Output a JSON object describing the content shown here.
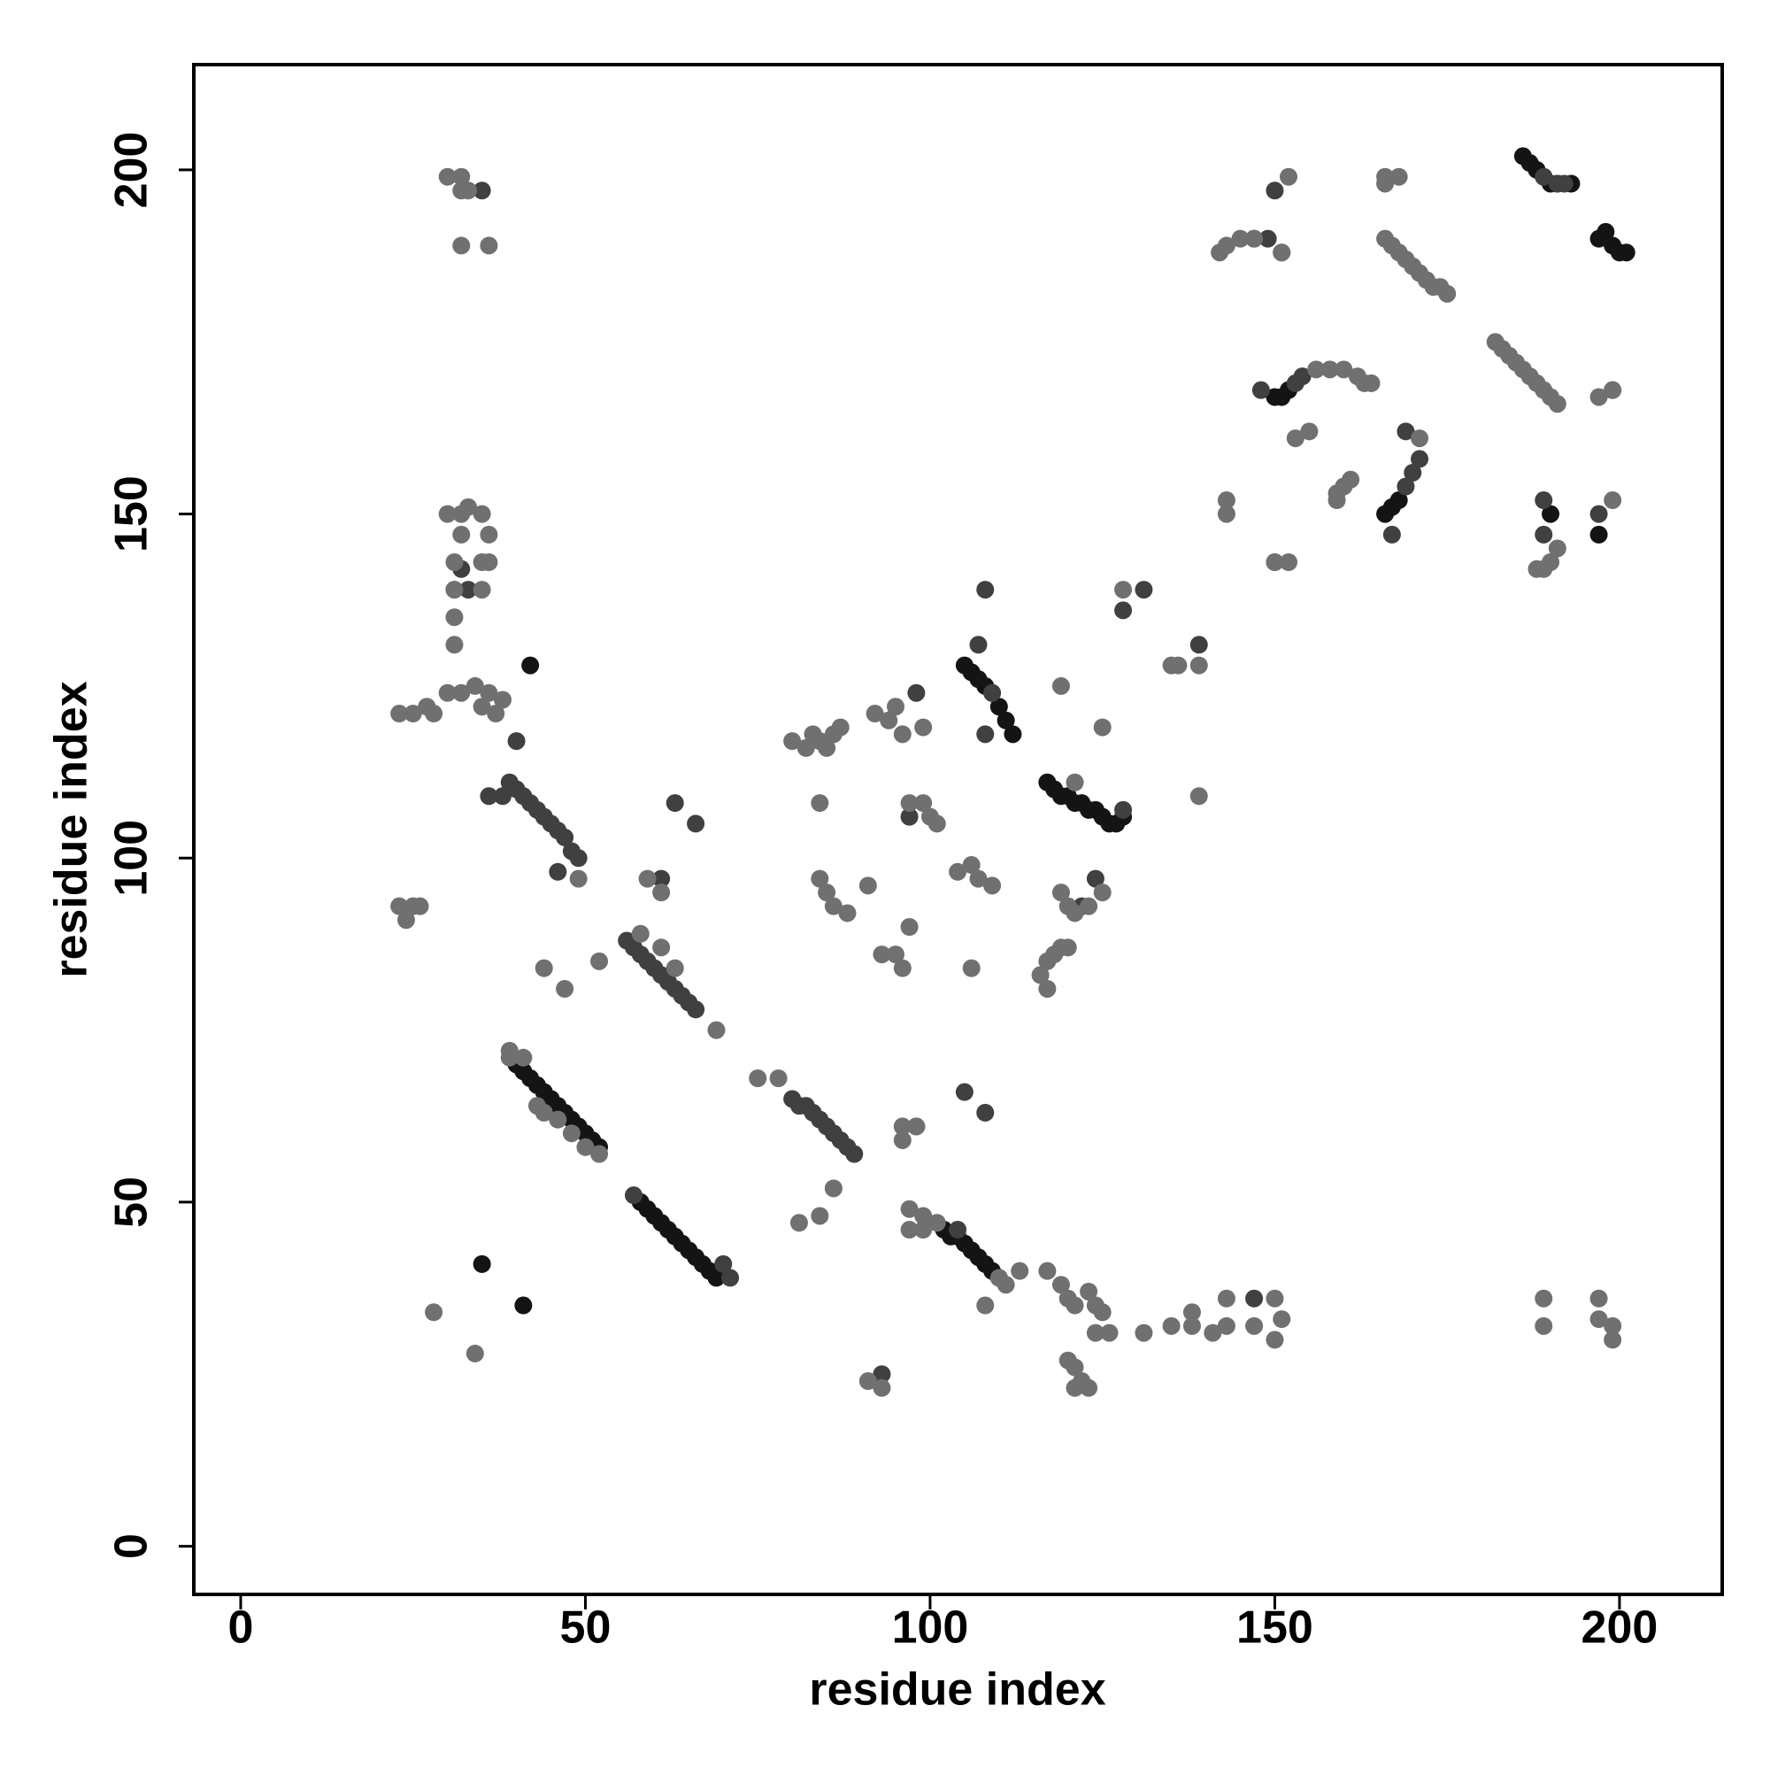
{
  "chart_data": {
    "type": "scatter",
    "xlabel": "residue index",
    "ylabel": "residue index",
    "xlim": [
      -6.8,
      214.9
    ],
    "ylim": [
      -7,
      215.3
    ],
    "xticks": [
      0,
      50,
      100,
      150,
      200
    ],
    "yticks": [
      0,
      50,
      100,
      150,
      200
    ],
    "series": [
      {
        "color": "#141414",
        "x": [
          40,
          41,
          42,
          43,
          44,
          45,
          46,
          47,
          48,
          49,
          50,
          51,
          52,
          58,
          59,
          60,
          61,
          62,
          63,
          64,
          65,
          66,
          67,
          68,
          69,
          102,
          103,
          104,
          105,
          106,
          107,
          108,
          109,
          110,
          105,
          106,
          107,
          108,
          109,
          110,
          111,
          112,
          117,
          118,
          119,
          120,
          121,
          122,
          123,
          124,
          125,
          126,
          127,
          128,
          186,
          187,
          188,
          189,
          190,
          191,
          193,
          197,
          198,
          199,
          200,
          201,
          35,
          41,
          42,
          167,
          168,
          166,
          150,
          151,
          152,
          190,
          197
        ],
        "values": [
          70,
          69,
          68,
          67,
          66,
          65,
          64,
          63,
          62,
          61,
          60,
          59,
          58,
          50,
          49,
          48,
          47,
          46,
          45,
          44,
          43,
          42,
          41,
          40,
          39,
          46,
          45,
          45,
          44,
          43,
          42,
          41,
          40,
          39,
          128,
          127,
          126,
          125,
          124,
          122,
          120,
          118,
          111,
          110,
          109,
          109,
          108,
          108,
          107,
          107,
          106,
          105,
          105,
          106,
          202,
          201,
          200,
          199,
          198,
          198,
          198,
          190,
          191,
          189,
          188,
          188,
          41,
          35,
          128,
          151,
          152,
          150,
          167,
          167,
          168,
          150,
          147
        ]
      },
      {
        "color": "#404040",
        "x": [
          56,
          57,
          58,
          59,
          60,
          61,
          62,
          63,
          64,
          65,
          66,
          36,
          38,
          39,
          40,
          41,
          42,
          43,
          44,
          45,
          46,
          47,
          48,
          49,
          46,
          40,
          80,
          81,
          82,
          83,
          84,
          85,
          86,
          87,
          88,
          89,
          57,
          70,
          71,
          104,
          107,
          108,
          109,
          169,
          170,
          171,
          169,
          167,
          148,
          153,
          154,
          147,
          149,
          150,
          151,
          189,
          191,
          192,
          199,
          197,
          189,
          189,
          98,
          97,
          61,
          63,
          66,
          105,
          108,
          98,
          124,
          122,
          128,
          131,
          139,
          128,
          108,
          147,
          93,
          35,
          31,
          32,
          33
        ],
        "values": [
          88,
          87,
          86,
          85,
          84,
          83,
          82,
          81,
          80,
          79,
          78,
          109,
          109,
          111,
          110,
          109,
          108,
          107,
          106,
          105,
          104,
          103,
          101,
          100,
          98,
          117,
          65,
          64,
          64,
          63,
          62,
          61,
          60,
          59,
          58,
          57,
          51,
          41,
          39,
          46,
          131,
          139,
          124,
          154,
          156,
          158,
          162,
          147,
          168,
          169,
          170,
          190,
          190,
          197,
          188,
          199,
          198,
          198,
          168,
          150,
          152,
          147,
          61,
          106,
          97,
          108,
          105,
          66,
          63,
          124,
          97,
          93,
          136,
          139,
          131,
          107,
          118,
          36,
          25,
          197,
          139,
          142,
          139
        ]
      },
      {
        "color": "#707070",
        "x": [
          39,
          41,
          43,
          44,
          46,
          48,
          50,
          52,
          58,
          61,
          63,
          69,
          39,
          49,
          75,
          78,
          86,
          84,
          81,
          97,
          99,
          101,
          97,
          99,
          108,
          113,
          111,
          110,
          121,
          166,
          167,
          168,
          169,
          170,
          171,
          172,
          173,
          174,
          175,
          182,
          183,
          184,
          185,
          186,
          187,
          188,
          189,
          190,
          191,
          199,
          197,
          150,
          156,
          158,
          160,
          162,
          163,
          164,
          166,
          171,
          142,
          143,
          145,
          147,
          151,
          152,
          166,
          168,
          30,
          32,
          32,
          33,
          32,
          36,
          30,
          32,
          33,
          35,
          32,
          36,
          31,
          35,
          36,
          31,
          35,
          31,
          31,
          30,
          32,
          34,
          36,
          35,
          37,
          38,
          23,
          25,
          27,
          28,
          23,
          24,
          25,
          26,
          28,
          34,
          44,
          47,
          52,
          80,
          82,
          83,
          84,
          85,
          86,
          87,
          84,
          84,
          85,
          86,
          88,
          91,
          93,
          95,
          96,
          97,
          92,
          94,
          95,
          96,
          99,
          97,
          99,
          100,
          101,
          104,
          106,
          107,
          109,
          106,
          96,
          98,
          96,
          117,
          118,
          119,
          116,
          117,
          120,
          119,
          120,
          121,
          123,
          125,
          119,
          125,
          128,
          135,
          136,
          139,
          139,
          143,
          143,
          150,
          152,
          153,
          155,
          159,
          160,
          161,
          159,
          117,
          119,
          120,
          121,
          123,
          124,
          125,
          124,
          126,
          131,
          135,
          138,
          138,
          141,
          143,
          143,
          147,
          150,
          151,
          150,
          120,
          121,
          122,
          123,
          121,
          91,
          93,
          189,
          189,
          197,
          197,
          199,
          199,
          188,
          189,
          190,
          191,
          199,
          59,
          61
        ],
        "values": [
          72,
          71,
          64,
          63,
          62,
          60,
          58,
          57,
          89,
          87,
          84,
          75,
          71,
          97,
          68,
          68,
          52,
          48,
          47,
          49,
          48,
          47,
          46,
          46,
          35,
          40,
          38,
          39,
          111,
          190,
          189,
          188,
          187,
          186,
          185,
          184,
          183,
          183,
          182,
          175,
          174,
          173,
          172,
          171,
          170,
          169,
          168,
          167,
          166,
          168,
          167,
          143,
          171,
          171,
          171,
          170,
          169,
          169,
          198,
          161,
          188,
          189,
          190,
          190,
          188,
          199,
          199,
          199,
          199,
          199,
          197,
          197,
          189,
          189,
          150,
          150,
          151,
          150,
          147,
          147,
          143,
          143,
          143,
          139,
          139,
          135,
          131,
          124,
          124,
          125,
          124,
          122,
          121,
          123,
          121,
          121,
          122,
          121,
          93,
          91,
          93,
          93,
          34,
          28,
          84,
          81,
          85,
          117,
          116,
          118,
          117,
          116,
          118,
          119,
          108,
          97,
          95,
          93,
          92,
          96,
          86,
          86,
          84,
          90,
          121,
          120,
          122,
          118,
          119,
          108,
          108,
          106,
          105,
          98,
          99,
          97,
          96,
          84,
          61,
          61,
          59,
          85,
          86,
          87,
          83,
          81,
          87,
          95,
          93,
          92,
          93,
          95,
          125,
          119,
          139,
          128,
          128,
          128,
          109,
          152,
          150,
          143,
          143,
          161,
          162,
          153,
          154,
          155,
          152,
          40,
          38,
          36,
          35,
          37,
          35,
          34,
          31,
          31,
          31,
          32,
          32,
          34,
          31,
          32,
          36,
          32,
          36,
          33,
          30,
          27,
          26,
          24,
          23,
          23,
          24,
          23,
          36,
          32,
          36,
          33,
          32,
          30,
          142,
          142,
          143,
          145,
          152,
          97,
          95
        ]
      }
    ]
  }
}
